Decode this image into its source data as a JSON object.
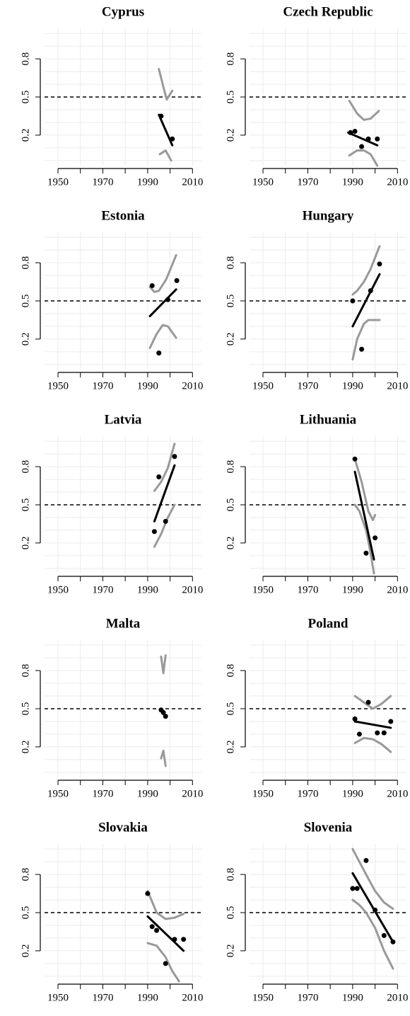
{
  "chart_data": [
    {
      "type": "scatter",
      "title": "Cyprus",
      "x": [
        1996,
        2001
      ],
      "y": [
        0.35,
        0.17
      ],
      "fit": {
        "x": [
          1995,
          2001
        ],
        "y": [
          0.36,
          0.12
        ]
      },
      "upper": {
        "x": [
          1995,
          1997,
          1998.5,
          2001
        ],
        "y": [
          0.72,
          0.58,
          0.48,
          0.55
        ]
      },
      "lower": {
        "x": [
          1995.4,
          1998,
          2000.5
        ],
        "y": [
          0.05,
          0.08,
          0.0
        ]
      },
      "xlim": [
        1944,
        2014
      ],
      "ylim": [
        -0.04,
        1.04
      ],
      "xticks": [
        1950,
        1970,
        1990,
        2010
      ],
      "yticks": [
        0.2,
        0.5,
        0.8
      ],
      "xgrid": [
        1950,
        1960,
        1970,
        1980,
        1990,
        2000,
        2010
      ],
      "ygrid": [
        0,
        0.1,
        0.2,
        0.3,
        0.4,
        0.5,
        0.6,
        0.7,
        0.8,
        0.9,
        1.0
      ],
      "reference_line": 0.5,
      "point_color": "#000000",
      "fit_color": "#000000",
      "band_color": "#999999",
      "grid": true
    },
    {
      "type": "scatter",
      "title": "Czech Republic",
      "x": [
        1989,
        1991,
        1994,
        1997,
        2001
      ],
      "y": [
        0.22,
        0.23,
        0.11,
        0.17,
        0.17
      ],
      "fit": {
        "x": [
          1988,
          2001
        ],
        "y": [
          0.22,
          0.12
        ]
      },
      "upper": {
        "x": [
          1988.5,
          1992,
          1995,
          1998,
          2001.7
        ],
        "y": [
          0.47,
          0.37,
          0.32,
          0.33,
          0.39
        ]
      },
      "lower": {
        "x": [
          1988.5,
          1992,
          1995,
          1998,
          2001
        ],
        "y": [
          0.04,
          0.08,
          0.08,
          0.05,
          -0.04
        ]
      },
      "xlim": [
        1944,
        2014
      ],
      "ylim": [
        -0.04,
        1.04
      ],
      "xticks": [
        1950,
        1970,
        1990,
        2010
      ],
      "yticks": [
        0.2,
        0.5,
        0.8
      ],
      "xgrid": [
        1950,
        1960,
        1970,
        1980,
        1990,
        2000,
        2010
      ],
      "ygrid": [
        0,
        0.1,
        0.2,
        0.3,
        0.4,
        0.5,
        0.6,
        0.7,
        0.8,
        0.9,
        1.0
      ],
      "reference_line": 0.5,
      "point_color": "#000000",
      "fit_color": "#000000",
      "band_color": "#999999",
      "grid": true
    },
    {
      "type": "scatter",
      "title": "Estonia",
      "x": [
        1992,
        1995,
        1999,
        2003
      ],
      "y": [
        0.62,
        0.09,
        0.51,
        0.66
      ],
      "fit": {
        "x": [
          1991,
          2002.7
        ],
        "y": [
          0.38,
          0.59
        ]
      },
      "upper": {
        "x": [
          1991,
          1993,
          1995,
          1998.3,
          2002.7
        ],
        "y": [
          0.61,
          0.57,
          0.58,
          0.67,
          0.86
        ]
      },
      "lower": {
        "x": [
          1991,
          1994,
          1996.7,
          1999,
          2002.7
        ],
        "y": [
          0.13,
          0.24,
          0.31,
          0.3,
          0.21
        ]
      },
      "xlim": [
        1944,
        2014
      ],
      "ylim": [
        -0.04,
        1.04
      ],
      "xticks": [
        1950,
        1970,
        1990,
        2010
      ],
      "yticks": [
        0.2,
        0.5,
        0.8
      ],
      "xgrid": [
        1950,
        1960,
        1970,
        1980,
        1990,
        2000,
        2010
      ],
      "ygrid": [
        0,
        0.1,
        0.2,
        0.3,
        0.4,
        0.5,
        0.6,
        0.7,
        0.8,
        0.9,
        1.0
      ],
      "reference_line": 0.5,
      "point_color": "#000000",
      "fit_color": "#000000",
      "band_color": "#999999",
      "grid": true
    },
    {
      "type": "scatter",
      "title": "Hungary",
      "x": [
        1990,
        1994,
        1998,
        2002
      ],
      "y": [
        0.5,
        0.12,
        0.58,
        0.79
      ],
      "fit": {
        "x": [
          1990,
          2002
        ],
        "y": [
          0.3,
          0.71
        ]
      },
      "upper": {
        "x": [
          1990,
          1992,
          1995,
          1998,
          2002
        ],
        "y": [
          0.55,
          0.58,
          0.65,
          0.75,
          0.93
        ]
      },
      "lower": {
        "x": [
          1990,
          1992,
          1995,
          1997,
          2002
        ],
        "y": [
          0.04,
          0.2,
          0.32,
          0.35,
          0.35
        ]
      },
      "xlim": [
        1944,
        2014
      ],
      "ylim": [
        -0.04,
        1.04
      ],
      "xticks": [
        1950,
        1970,
        1990,
        2010
      ],
      "yticks": [
        0.2,
        0.5,
        0.8
      ],
      "xgrid": [
        1950,
        1960,
        1970,
        1980,
        1990,
        2000,
        2010
      ],
      "ygrid": [
        0,
        0.1,
        0.2,
        0.3,
        0.4,
        0.5,
        0.6,
        0.7,
        0.8,
        0.9,
        1.0
      ],
      "reference_line": 0.5,
      "point_color": "#000000",
      "fit_color": "#000000",
      "band_color": "#999999",
      "grid": true
    },
    {
      "type": "scatter",
      "title": "Latvia",
      "x": [
        1993,
        1995,
        1998,
        2002
      ],
      "y": [
        0.29,
        0.72,
        0.37,
        0.88
      ],
      "fit": {
        "x": [
          1993,
          2002
        ],
        "y": [
          0.37,
          0.81
        ]
      },
      "upper": {
        "x": [
          1993,
          1996,
          1999,
          2002
        ],
        "y": [
          0.61,
          0.68,
          0.79,
          0.98
        ]
      },
      "lower": {
        "x": [
          1993,
          1996,
          1999,
          2002
        ],
        "y": [
          0.17,
          0.27,
          0.4,
          0.5
        ]
      },
      "xlim": [
        1944,
        2014
      ],
      "ylim": [
        -0.04,
        1.04
      ],
      "xticks": [
        1950,
        1970,
        1990,
        2010
      ],
      "yticks": [
        0.2,
        0.5,
        0.8
      ],
      "xgrid": [
        1950,
        1960,
        1970,
        1980,
        1990,
        2000,
        2010
      ],
      "ygrid": [
        0,
        0.1,
        0.2,
        0.3,
        0.4,
        0.5,
        0.6,
        0.7,
        0.8,
        0.9,
        1.0
      ],
      "reference_line": 0.5,
      "point_color": "#000000",
      "fit_color": "#000000",
      "band_color": "#999999",
      "grid": true
    },
    {
      "type": "scatter",
      "title": "Lithuania",
      "x": [
        1991,
        1996,
        2000
      ],
      "y": [
        0.86,
        0.12,
        0.24
      ],
      "fit": {
        "x": [
          1991,
          1999.5
        ],
        "y": [
          0.76,
          0.07
        ]
      },
      "upper": {
        "x": [
          1991,
          1994,
          1997,
          1999,
          2000
        ],
        "y": [
          0.86,
          0.68,
          0.45,
          0.38,
          0.42
        ]
      },
      "lower": {
        "x": [
          1991,
          1993,
          1996,
          1998,
          1999.5
        ],
        "y": [
          0.5,
          0.45,
          0.3,
          0.12,
          -0.04
        ]
      },
      "xlim": [
        1944,
        2014
      ],
      "ylim": [
        -0.04,
        1.04
      ],
      "xticks": [
        1950,
        1970,
        1990,
        2010
      ],
      "yticks": [
        0.2,
        0.5,
        0.8
      ],
      "xgrid": [
        1950,
        1960,
        1970,
        1980,
        1990,
        2000,
        2010
      ],
      "ygrid": [
        0,
        0.1,
        0.2,
        0.3,
        0.4,
        0.5,
        0.6,
        0.7,
        0.8,
        0.9,
        1.0
      ],
      "reference_line": 0.5,
      "point_color": "#000000",
      "fit_color": "#000000",
      "band_color": "#999999",
      "grid": true
    },
    {
      "type": "scatter",
      "title": "Malta",
      "x": [
        1996,
        1997,
        1998
      ],
      "y": [
        0.49,
        0.47,
        0.44
      ],
      "fit": {
        "x": [
          1996,
          1998
        ],
        "y": [
          0.49,
          0.44
        ]
      },
      "upper": {
        "x": [
          1996,
          1997,
          1998
        ],
        "y": [
          0.91,
          0.78,
          0.92
        ]
      },
      "lower": {
        "x": [
          1996,
          1997,
          1998
        ],
        "y": [
          0.11,
          0.17,
          0.05
        ]
      },
      "xlim": [
        1944,
        2014
      ],
      "ylim": [
        -0.04,
        1.04
      ],
      "xticks": [
        1950,
        1970,
        1990,
        2010
      ],
      "yticks": [
        0.2,
        0.5,
        0.8
      ],
      "xgrid": [
        1950,
        1960,
        1970,
        1980,
        1990,
        2000,
        2010
      ],
      "ygrid": [
        0,
        0.1,
        0.2,
        0.3,
        0.4,
        0.5,
        0.6,
        0.7,
        0.8,
        0.9,
        1.0
      ],
      "reference_line": 0.5,
      "point_color": "#000000",
      "fit_color": "#000000",
      "band_color": "#999999",
      "grid": true
    },
    {
      "type": "scatter",
      "title": "Poland",
      "x": [
        1991,
        1993,
        1997,
        2001,
        2004,
        2007
      ],
      "y": [
        0.42,
        0.3,
        0.55,
        0.31,
        0.31,
        0.4
      ],
      "fit": {
        "x": [
          1991,
          2007
        ],
        "y": [
          0.4,
          0.35
        ]
      },
      "upper": {
        "x": [
          1991,
          1995,
          1999,
          2003,
          2007
        ],
        "y": [
          0.6,
          0.55,
          0.5,
          0.54,
          0.6
        ]
      },
      "lower": {
        "x": [
          1991,
          1995,
          1999,
          2003,
          2007
        ],
        "y": [
          0.23,
          0.27,
          0.26,
          0.22,
          0.16
        ]
      },
      "xlim": [
        1944,
        2014
      ],
      "ylim": [
        -0.04,
        1.04
      ],
      "xticks": [
        1950,
        1970,
        1990,
        2010
      ],
      "yticks": [
        0.2,
        0.5,
        0.8
      ],
      "xgrid": [
        1950,
        1960,
        1970,
        1980,
        1990,
        2000,
        2010
      ],
      "ygrid": [
        0,
        0.1,
        0.2,
        0.3,
        0.4,
        0.5,
        0.6,
        0.7,
        0.8,
        0.9,
        1.0
      ],
      "reference_line": 0.5,
      "point_color": "#000000",
      "fit_color": "#000000",
      "band_color": "#999999",
      "grid": true
    },
    {
      "type": "scatter",
      "title": "Slovakia",
      "x": [
        1990,
        1992,
        1994,
        1998,
        2002,
        2006
      ],
      "y": [
        0.65,
        0.39,
        0.36,
        0.1,
        0.29,
        0.29
      ],
      "fit": {
        "x": [
          1990,
          2006
        ],
        "y": [
          0.47,
          0.2
        ]
      },
      "upper": {
        "x": [
          1990,
          1994,
          1998,
          2002,
          2006
        ],
        "y": [
          0.67,
          0.5,
          0.45,
          0.46,
          0.49
        ]
      },
      "lower": {
        "x": [
          1990,
          1994,
          1998,
          2001,
          2004
        ],
        "y": [
          0.26,
          0.24,
          0.15,
          0.04,
          -0.04
        ]
      },
      "xlim": [
        1944,
        2014
      ],
      "ylim": [
        -0.04,
        1.04
      ],
      "xticks": [
        1950,
        1970,
        1990,
        2010
      ],
      "yticks": [
        0.2,
        0.5,
        0.8
      ],
      "xgrid": [
        1950,
        1960,
        1970,
        1980,
        1990,
        2000,
        2010
      ],
      "ygrid": [
        0,
        0.1,
        0.2,
        0.3,
        0.4,
        0.5,
        0.6,
        0.7,
        0.8,
        0.9,
        1.0
      ],
      "reference_line": 0.5,
      "point_color": "#000000",
      "fit_color": "#000000",
      "band_color": "#999999",
      "grid": true
    },
    {
      "type": "scatter",
      "title": "Slovenia",
      "x": [
        1990,
        1992,
        1996,
        2000,
        2004,
        2008
      ],
      "y": [
        0.69,
        0.69,
        0.91,
        0.52,
        0.32,
        0.27
      ],
      "fit": {
        "x": [
          1990,
          2008
        ],
        "y": [
          0.81,
          0.27
        ]
      },
      "upper": {
        "x": [
          1990,
          1993,
          1996,
          2000,
          2004,
          2008
        ],
        "y": [
          1.0,
          0.9,
          0.8,
          0.67,
          0.58,
          0.53
        ]
      },
      "lower": {
        "x": [
          1990,
          1993,
          1996,
          2000,
          2004,
          2008
        ],
        "y": [
          0.6,
          0.56,
          0.5,
          0.38,
          0.2,
          0.06
        ]
      },
      "xlim": [
        1944,
        2014
      ],
      "ylim": [
        -0.04,
        1.04
      ],
      "xticks": [
        1950,
        1970,
        1990,
        2010
      ],
      "yticks": [
        0.2,
        0.5,
        0.8
      ],
      "xgrid": [
        1950,
        1960,
        1970,
        1980,
        1990,
        2000,
        2010
      ],
      "ygrid": [
        0,
        0.1,
        0.2,
        0.3,
        0.4,
        0.5,
        0.6,
        0.7,
        0.8,
        0.9,
        1.0
      ],
      "reference_line": 0.5,
      "point_color": "#000000",
      "fit_color": "#000000",
      "band_color": "#999999",
      "grid": true
    }
  ]
}
